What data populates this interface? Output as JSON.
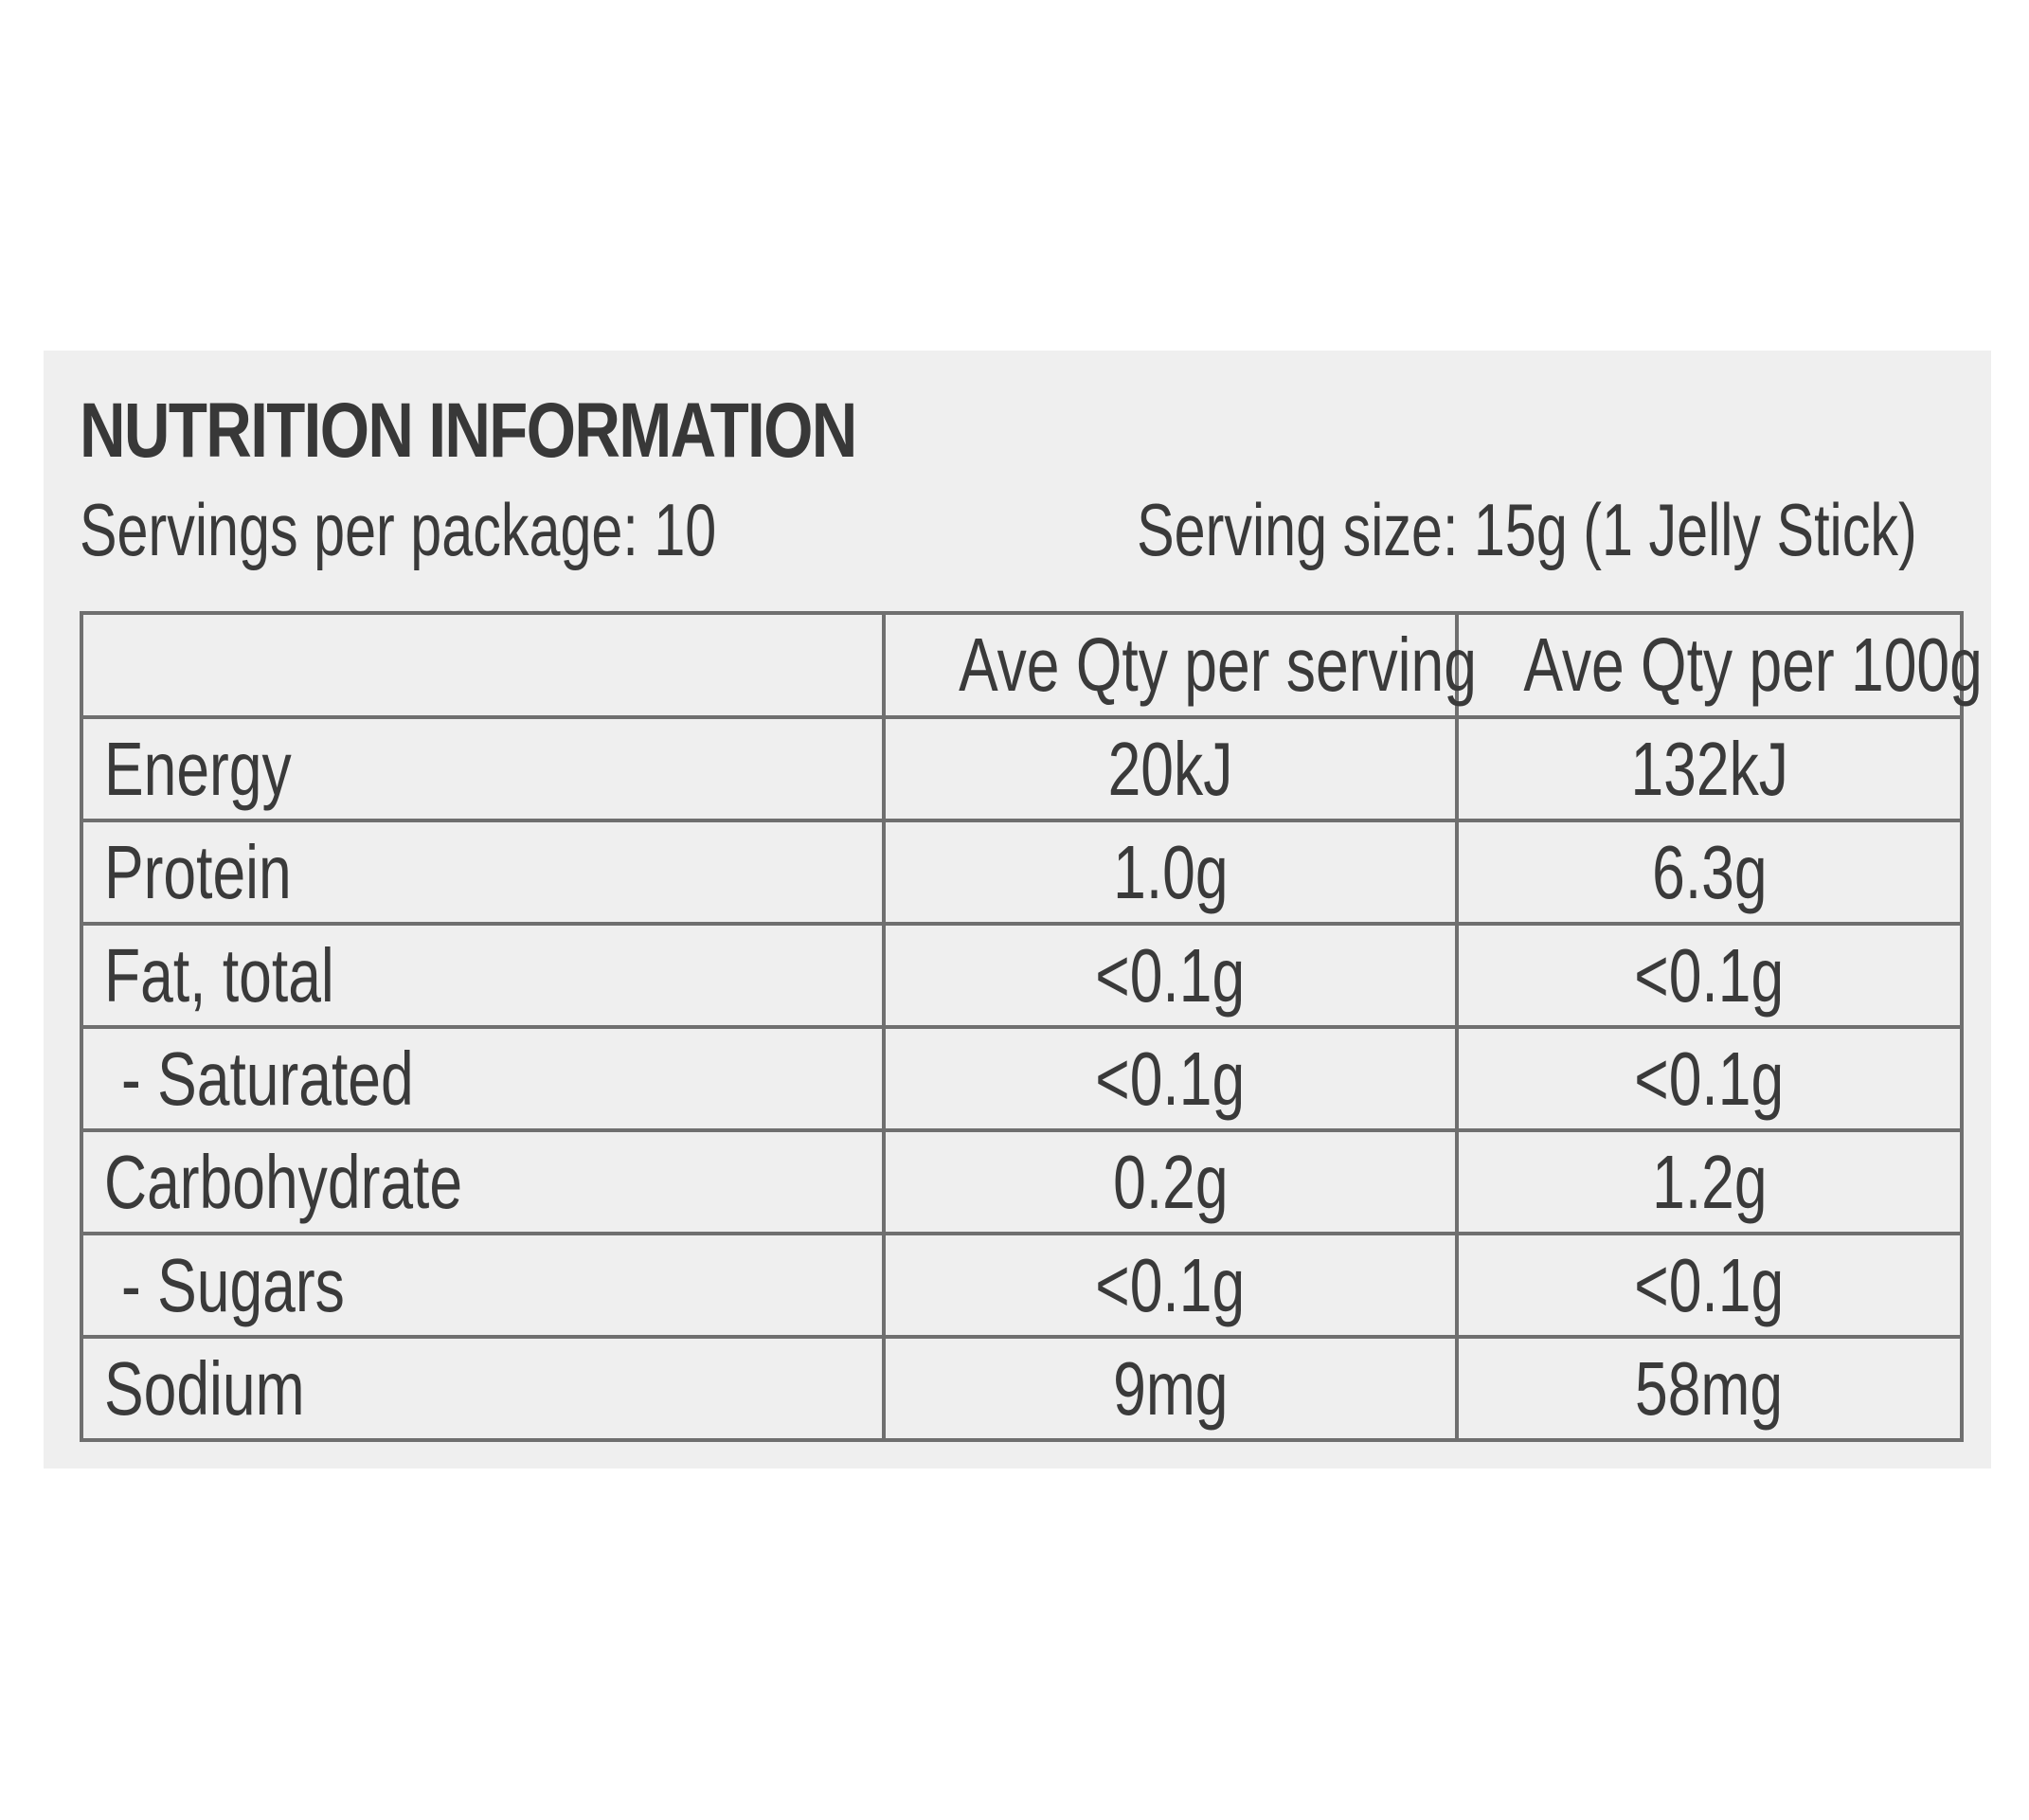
{
  "panel": {
    "title": "NUTRITION INFORMATION",
    "servings_per_package": "Servings per package: 10",
    "serving_size": "Serving size: 15g (1 Jelly Stick)"
  },
  "table": {
    "headers": [
      "",
      "Ave Qty per serving",
      "Ave Qty per 100g"
    ],
    "rows": [
      {
        "label": "Energy",
        "per_serving": "20kJ",
        "per_100g": "132kJ"
      },
      {
        "label": "Protein",
        "per_serving": "1.0g",
        "per_100g": "6.3g"
      },
      {
        "label": "Fat, total",
        "per_serving": "<0.1g",
        "per_100g": "<0.1g"
      },
      {
        "label": "- Saturated",
        "per_serving": "<0.1g",
        "per_100g": "<0.1g"
      },
      {
        "label": "Carbohydrate",
        "per_serving": "0.2g",
        "per_100g": "1.2g"
      },
      {
        "label": "- Sugars",
        "per_serving": "<0.1g",
        "per_100g": "<0.1g"
      },
      {
        "label": "Sodium",
        "per_serving": "9mg",
        "per_100g": "58mg"
      }
    ]
  }
}
